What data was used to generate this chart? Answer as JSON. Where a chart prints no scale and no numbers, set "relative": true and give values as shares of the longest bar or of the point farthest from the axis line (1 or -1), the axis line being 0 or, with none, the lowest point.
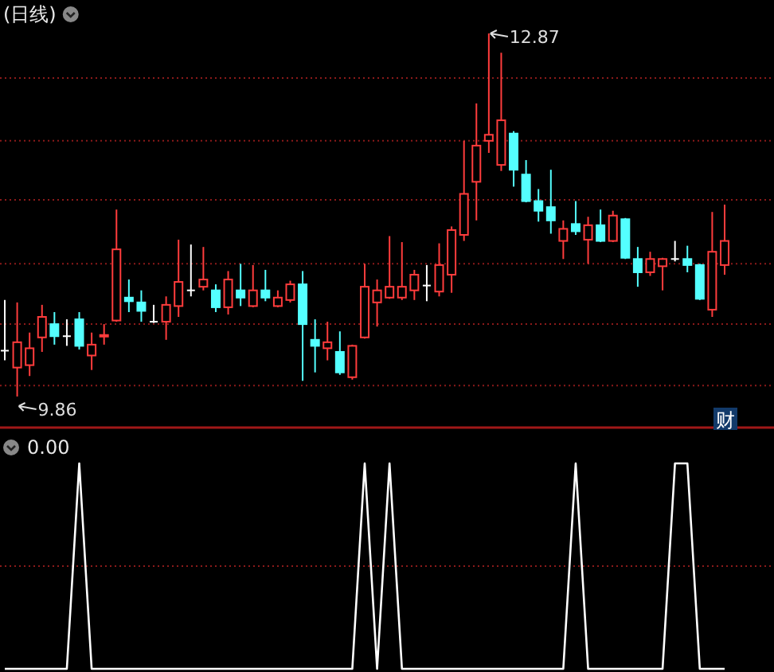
{
  "chart_data": [
    {
      "type": "candlestick",
      "title": "(日线)",
      "grid": "y",
      "categories": [
        null,
        null,
        null,
        null,
        null,
        null,
        null,
        null,
        null,
        null,
        null,
        null,
        null,
        null,
        null,
        null,
        null,
        null,
        null,
        null,
        null,
        null,
        null,
        null,
        null,
        null,
        null,
        null,
        null,
        null,
        null,
        null,
        null,
        null,
        null,
        null,
        null,
        null,
        null,
        null,
        null,
        null,
        null,
        null,
        null,
        null,
        null,
        null,
        null,
        null,
        null,
        null,
        null,
        null,
        null,
        null,
        null,
        null,
        null
      ],
      "yticks": [
        {
          "value": 12.5,
          "label": null
        },
        {
          "value": 11.98,
          "label": null
        },
        {
          "value": 11.49,
          "label": null
        },
        {
          "value": 10.96,
          "label": null
        },
        {
          "value": 10.46,
          "label": null
        },
        {
          "value": 9.95,
          "label": null
        }
      ],
      "ohlc": [
        [
          10.24,
          10.66,
          10.16,
          10.24
        ],
        [
          10.1,
          10.64,
          9.86,
          10.31
        ],
        [
          10.12,
          10.39,
          10.03,
          10.26
        ],
        [
          10.35,
          10.62,
          10.23,
          10.52
        ],
        [
          10.46,
          10.56,
          10.29,
          10.36
        ],
        [
          10.36,
          10.5,
          10.28,
          10.36
        ],
        [
          10.5,
          10.56,
          10.25,
          10.28
        ],
        [
          10.2,
          10.39,
          10.08,
          10.29
        ],
        [
          10.36,
          10.46,
          10.29,
          10.37
        ],
        [
          10.49,
          11.41,
          10.48,
          11.08
        ],
        [
          10.68,
          10.83,
          10.56,
          10.65
        ],
        [
          10.64,
          10.74,
          10.48,
          10.57
        ],
        [
          10.48,
          10.62,
          10.47,
          10.48
        ],
        [
          10.48,
          10.69,
          10.33,
          10.62
        ],
        [
          10.61,
          11.16,
          10.52,
          10.81
        ],
        [
          10.74,
          11.12,
          10.69,
          10.74
        ],
        [
          10.77,
          11.1,
          10.74,
          10.83
        ],
        [
          10.74,
          10.79,
          10.56,
          10.6
        ],
        [
          10.6,
          10.9,
          10.54,
          10.83
        ],
        [
          10.74,
          10.96,
          10.61,
          10.68
        ],
        [
          10.61,
          10.95,
          10.6,
          10.74
        ],
        [
          10.74,
          10.91,
          10.65,
          10.68
        ],
        [
          10.61,
          10.74,
          10.6,
          10.68
        ],
        [
          10.66,
          10.82,
          10.64,
          10.79
        ],
        [
          10.79,
          10.9,
          9.99,
          10.46
        ],
        [
          10.33,
          10.5,
          10.06,
          10.28
        ],
        [
          10.26,
          10.48,
          10.16,
          10.31
        ],
        [
          10.23,
          10.4,
          10.04,
          10.06
        ],
        [
          10.02,
          10.29,
          10.0,
          10.28
        ],
        [
          10.35,
          10.96,
          10.34,
          10.77
        ],
        [
          10.64,
          10.83,
          10.44,
          10.74
        ],
        [
          10.68,
          11.19,
          10.67,
          10.77
        ],
        [
          10.68,
          11.14,
          10.66,
          10.77
        ],
        [
          10.74,
          10.91,
          10.66,
          10.87
        ],
        [
          10.78,
          10.95,
          10.65,
          10.78
        ],
        [
          10.73,
          11.13,
          10.69,
          10.95
        ],
        [
          10.87,
          11.27,
          10.72,
          11.24
        ],
        [
          11.2,
          11.98,
          11.15,
          11.54
        ],
        [
          11.64,
          12.29,
          11.32,
          11.94
        ],
        [
          11.98,
          12.87,
          11.88,
          12.03
        ],
        [
          11.78,
          12.71,
          11.73,
          12.15
        ],
        [
          12.04,
          12.06,
          11.6,
          11.74
        ],
        [
          11.7,
          11.82,
          11.47,
          11.48
        ],
        [
          11.48,
          11.58,
          11.31,
          11.4
        ],
        [
          11.43,
          11.74,
          11.21,
          11.32
        ],
        [
          11.15,
          11.32,
          11.0,
          11.25
        ],
        [
          11.29,
          11.48,
          11.2,
          11.23
        ],
        [
          11.16,
          11.35,
          10.96,
          11.28
        ],
        [
          11.28,
          11.41,
          11.14,
          11.15
        ],
        [
          11.15,
          11.4,
          11.14,
          11.36
        ],
        [
          11.33,
          11.34,
          11.0,
          11.01
        ],
        [
          11.0,
          11.1,
          10.77,
          10.89
        ],
        [
          10.89,
          11.06,
          10.86,
          11.0
        ],
        [
          10.94,
          11.01,
          10.74,
          11.0
        ],
        [
          11.0,
          11.15,
          10.98,
          11.0
        ],
        [
          11.0,
          11.11,
          10.89,
          10.95
        ],
        [
          10.95,
          10.96,
          10.66,
          10.67
        ],
        [
          10.58,
          11.39,
          10.52,
          11.06
        ],
        [
          10.95,
          11.45,
          10.87,
          11.15
        ]
      ],
      "annotations": [
        "12.87",
        "9.86",
        "财"
      ]
    },
    {
      "type": "line",
      "title": "0.00",
      "relative": true,
      "categories": [
        null,
        null,
        null,
        null,
        null,
        null,
        null,
        null,
        null,
        null,
        null,
        null,
        null,
        null,
        null,
        null,
        null,
        null,
        null,
        null,
        null,
        null,
        null,
        null,
        null,
        null,
        null,
        null,
        null,
        null,
        null,
        null,
        null,
        null,
        null,
        null,
        null,
        null,
        null,
        null,
        null,
        null,
        null,
        null,
        null,
        null,
        null,
        null,
        null,
        null,
        null,
        null,
        null,
        null,
        null,
        null,
        null,
        null,
        null
      ],
      "ref_lines": [
        {
          "axis": "y",
          "value": 0.5,
          "color": "#8b1a1a",
          "line_style": "dotted"
        }
      ],
      "series": [
        {
          "color": "#ffffff",
          "values": [
            0,
            0,
            0,
            0,
            0,
            0,
            1,
            0,
            0,
            0,
            0,
            0,
            0,
            0,
            0,
            0,
            0,
            0,
            0,
            0,
            0,
            0,
            0,
            0,
            0,
            0,
            0,
            0,
            0,
            1,
            0,
            1,
            0,
            0,
            0,
            0,
            0,
            0,
            0,
            0,
            0,
            0,
            0,
            0,
            0,
            0,
            1,
            0,
            0,
            0,
            0,
            0,
            0,
            0,
            1,
            1,
            0,
            0,
            0
          ]
        }
      ]
    }
  ]
}
